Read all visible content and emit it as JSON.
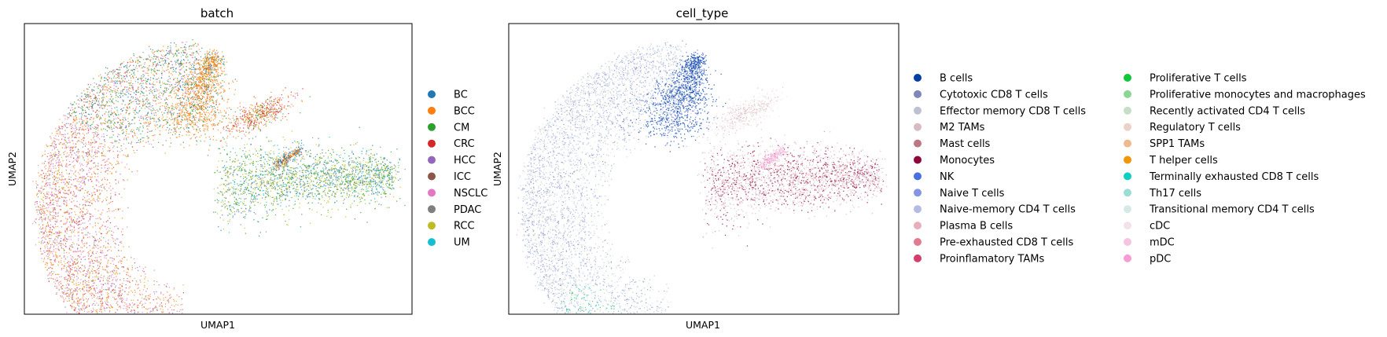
{
  "panels": [
    {
      "title": "batch",
      "xlabel": "UMAP1",
      "ylabel": "UMAP2",
      "legend": [
        {
          "label": "BC",
          "color": "#1f77b4"
        },
        {
          "label": "BCC",
          "color": "#ff7f0e"
        },
        {
          "label": "CM",
          "color": "#2ca02c"
        },
        {
          "label": "CRC",
          "color": "#d62728"
        },
        {
          "label": "HCC",
          "color": "#9467bd"
        },
        {
          "label": "ICC",
          "color": "#8c564b"
        },
        {
          "label": "NSCLC",
          "color": "#e377c2"
        },
        {
          "label": "PDAC",
          "color": "#7f7f7f"
        },
        {
          "label": "RCC",
          "color": "#bcbd22"
        },
        {
          "label": "UM",
          "color": "#17becf"
        }
      ]
    },
    {
      "title": "cell_type",
      "xlabel": "UMAP1",
      "ylabel": "UMAP2",
      "legend": [
        {
          "label": "B cells",
          "color": "#023fa5"
        },
        {
          "label": "Cytotoxic CD8 T cells",
          "color": "#7d87b9"
        },
        {
          "label": "Effector memory CD8 T cells",
          "color": "#bec1d4"
        },
        {
          "label": "M2 TAMs",
          "color": "#d6bcc0"
        },
        {
          "label": "Mast cells",
          "color": "#bb7784"
        },
        {
          "label": "Monocytes",
          "color": "#8e063b"
        },
        {
          "label": "NK",
          "color": "#4a6fe3"
        },
        {
          "label": "Naive T cells",
          "color": "#8595e1"
        },
        {
          "label": "Naive-memory CD4 T cells",
          "color": "#b5bbe3"
        },
        {
          "label": "Plasma B cells",
          "color": "#e6afb9"
        },
        {
          "label": "Pre-exhausted CD8 T cells",
          "color": "#e07b91"
        },
        {
          "label": "Proinflamatory TAMs",
          "color": "#d33f6a"
        },
        {
          "label": "Proliferative T cells",
          "color": "#11c638"
        },
        {
          "label": "Proliferative monocytes and macrophages",
          "color": "#8dd593"
        },
        {
          "label": "Recently activated CD4 T cells",
          "color": "#c6dec7"
        },
        {
          "label": "Regulatory T cells",
          "color": "#ead3c6"
        },
        {
          "label": "SPP1 TAMs",
          "color": "#f0b98d"
        },
        {
          "label": "T helper cells",
          "color": "#ef9708"
        },
        {
          "label": "Terminally exhausted CD8 T cells",
          "color": "#0fcfc0"
        },
        {
          "label": "Th17 cells",
          "color": "#9cded6"
        },
        {
          "label": "Transitional memory CD4 T cells",
          "color": "#d5eae7"
        },
        {
          "label": "cDC",
          "color": "#f3e1eb"
        },
        {
          "label": "mDC",
          "color": "#f6c4e1"
        },
        {
          "label": "pDC",
          "color": "#f79cd4"
        }
      ]
    }
  ],
  "chart_data": [
    {
      "type": "scatter",
      "title": "batch",
      "xlabel": "UMAP1",
      "ylabel": "UMAP2",
      "x_ticks": "none",
      "y_ticks": "none",
      "legend_placement": "right",
      "series": [
        {
          "name": "BC"
        },
        {
          "name": "BCC"
        },
        {
          "name": "CM"
        },
        {
          "name": "CRC"
        },
        {
          "name": "HCC"
        },
        {
          "name": "ICC"
        },
        {
          "name": "NSCLC"
        },
        {
          "name": "PDAC"
        },
        {
          "name": "RCC"
        },
        {
          "name": "UM"
        }
      ]
    },
    {
      "type": "scatter",
      "title": "cell_type",
      "xlabel": "UMAP1",
      "ylabel": "UMAP2",
      "x_ticks": "none",
      "y_ticks": "none",
      "legend_placement": "right",
      "series": [
        {
          "name": "B cells"
        },
        {
          "name": "Cytotoxic CD8 T cells"
        },
        {
          "name": "Effector memory CD8 T cells"
        },
        {
          "name": "M2 TAMs"
        },
        {
          "name": "Mast cells"
        },
        {
          "name": "Monocytes"
        },
        {
          "name": "NK"
        },
        {
          "name": "Naive T cells"
        },
        {
          "name": "Naive-memory CD4 T cells"
        },
        {
          "name": "Plasma B cells"
        },
        {
          "name": "Pre-exhausted CD8 T cells"
        },
        {
          "name": "Proinflamatory TAMs"
        },
        {
          "name": "Proliferative T cells"
        },
        {
          "name": "Proliferative monocytes and macrophages"
        },
        {
          "name": "Recently activated CD4 T cells"
        },
        {
          "name": "Regulatory T cells"
        },
        {
          "name": "SPP1 TAMs"
        },
        {
          "name": "T helper cells"
        },
        {
          "name": "Terminally exhausted CD8 T cells"
        },
        {
          "name": "Th17 cells"
        },
        {
          "name": "Transitional memory CD4 T cells"
        },
        {
          "name": "cDC"
        },
        {
          "name": "mDC"
        },
        {
          "name": "pDC"
        }
      ]
    }
  ]
}
